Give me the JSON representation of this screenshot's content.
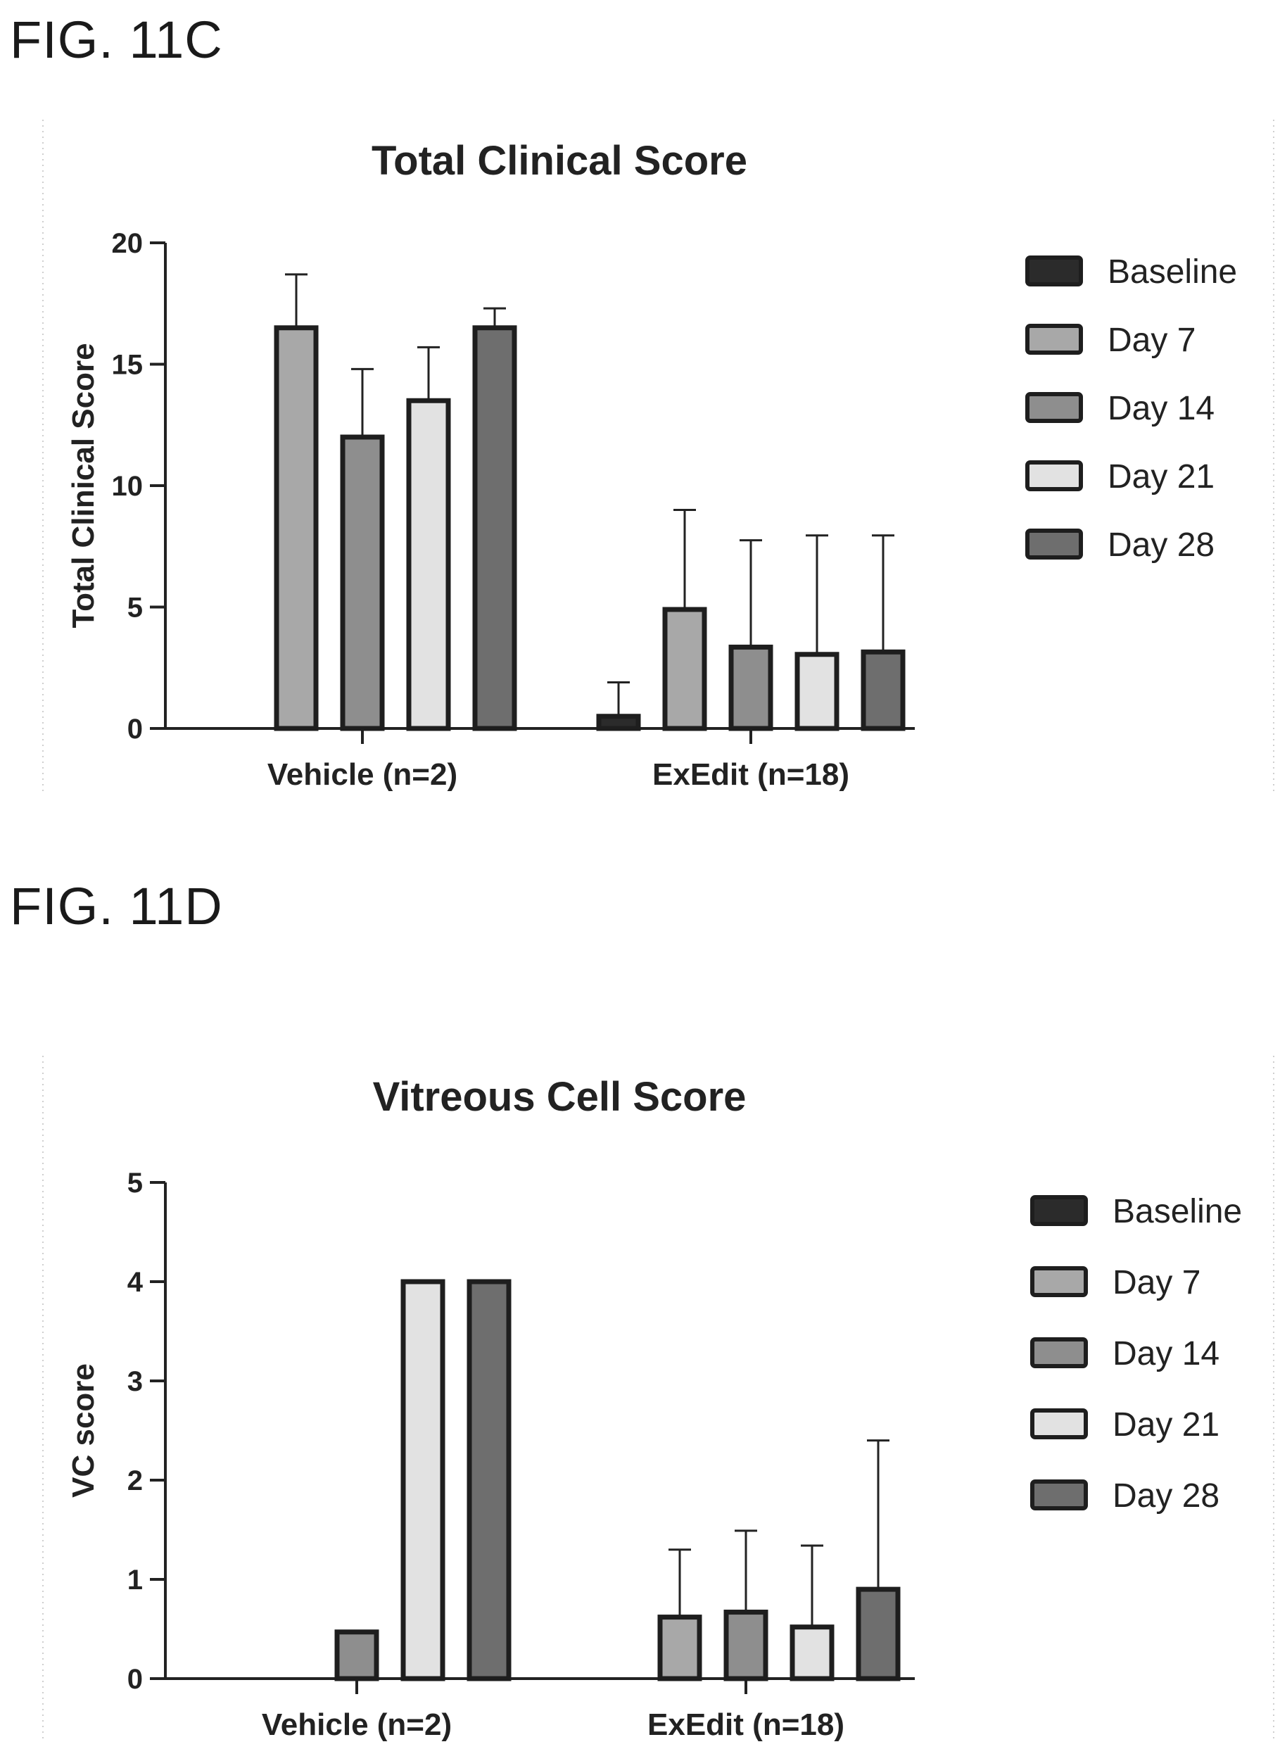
{
  "figures": [
    {
      "label": "FIG. 11C"
    },
    {
      "label": "FIG. 11D"
    }
  ],
  "chart_data": [
    {
      "type": "bar",
      "title": "Total Clinical Score",
      "xlabel": "",
      "ylabel": "Total Clinical Score",
      "ylim": [
        0,
        20
      ],
      "yticks": [
        0,
        5,
        10,
        15,
        20
      ],
      "categories": [
        "Vehicle (n=2)",
        "ExEdit (n=18)"
      ],
      "legend_position": "right",
      "series": [
        {
          "name": "Baseline",
          "color": "#2b2b2b",
          "values": [
            0,
            0.5
          ],
          "errors": [
            null,
            1.4
          ]
        },
        {
          "name": "Day 7",
          "color": "#a8a8a8",
          "values": [
            16.5,
            4.9
          ],
          "errors": [
            2.2,
            4.1
          ]
        },
        {
          "name": "Day 14",
          "color": "#8e8e8e",
          "values": [
            12,
            3.35
          ],
          "errors": [
            2.8,
            4.4
          ]
        },
        {
          "name": "Day 21",
          "color": "#e2e2e2",
          "values": [
            13.5,
            3.05
          ],
          "errors": [
            2.2,
            4.9
          ]
        },
        {
          "name": "Day 28",
          "color": "#6e6e6e",
          "values": [
            16.5,
            3.15
          ],
          "errors": [
            0.8,
            4.8
          ]
        }
      ]
    },
    {
      "type": "bar",
      "title": "Vitreous Cell Score",
      "xlabel": "",
      "ylabel": "VC score",
      "ylim": [
        0,
        5
      ],
      "yticks": [
        0,
        1,
        2,
        3,
        4,
        5
      ],
      "categories": [
        "Vehicle (n=2)",
        "ExEdit (n=18)"
      ],
      "legend_position": "right",
      "series": [
        {
          "name": "Baseline",
          "color": "#2b2b2b",
          "values": [
            0,
            0
          ],
          "errors": [
            null,
            null
          ]
        },
        {
          "name": "Day 7",
          "color": "#a8a8a8",
          "values": [
            0,
            0.62
          ],
          "errors": [
            null,
            0.68
          ]
        },
        {
          "name": "Day 14",
          "color": "#8e8e8e",
          "values": [
            0.47,
            0.67
          ],
          "errors": [
            null,
            0.82
          ]
        },
        {
          "name": "Day 21",
          "color": "#e2e2e2",
          "values": [
            4,
            0.52
          ],
          "errors": [
            null,
            0.82
          ]
        },
        {
          "name": "Day 28",
          "color": "#6e6e6e",
          "values": [
            4,
            0.9
          ],
          "errors": [
            null,
            1.5
          ]
        }
      ]
    }
  ]
}
